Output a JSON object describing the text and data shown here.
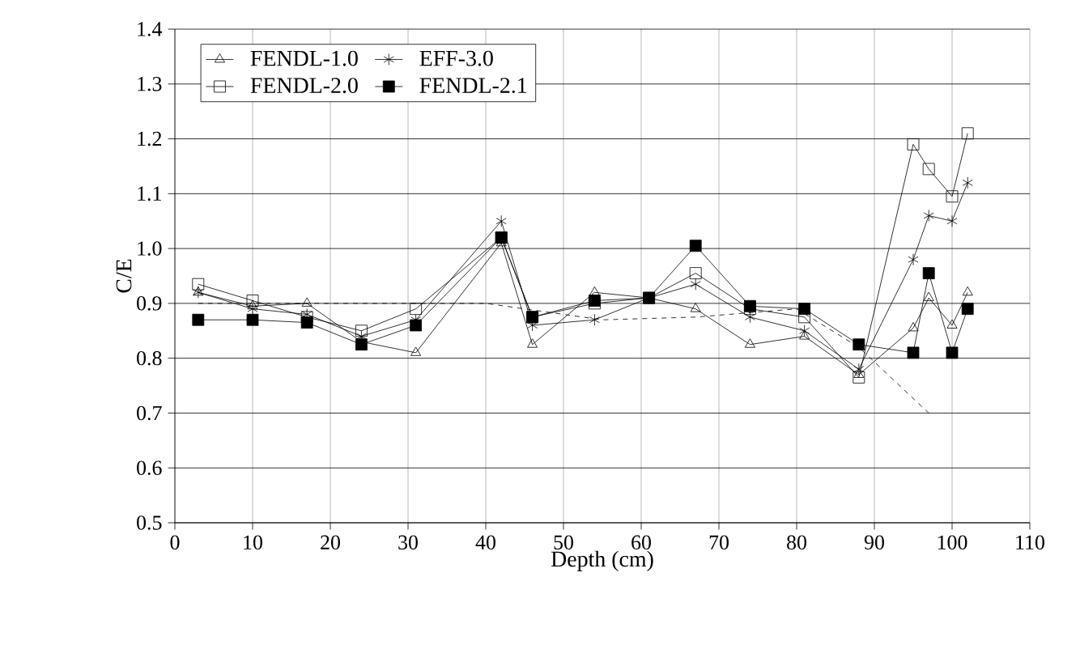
{
  "chart_data": {
    "type": "line",
    "xlabel": "Depth (cm)",
    "ylabel": "C/E",
    "xlim": [
      0,
      110
    ],
    "xticks": [
      0,
      10,
      20,
      30,
      40,
      50,
      60,
      70,
      80,
      90,
      100,
      110
    ],
    "ylim": [
      0.5,
      1.4
    ],
    "yticks": [
      0.5,
      0.6,
      0.7,
      0.8,
      0.9,
      {
        "value": 1,
        "label": "1.0"
      },
      1.1,
      1.2,
      1.3,
      1.4
    ],
    "grid": true,
    "legend": "top left",
    "x": [
      3,
      10,
      17,
      24,
      31,
      42,
      46,
      54,
      61,
      67,
      74,
      81,
      88,
      95,
      97,
      100,
      102
    ],
    "series": [
      {
        "name": "FENDL-1.0",
        "color": "#000000",
        "marker": "triangle",
        "values": [
          0.92,
          0.895,
          0.9,
          0.83,
          0.81,
          1.01,
          0.825,
          0.92,
          0.91,
          0.89,
          0.825,
          0.84,
          0.77,
          0.855,
          0.91,
          0.86,
          0.92
        ]
      },
      {
        "name": "EFF-3.0",
        "color": "#000000",
        "marker": "cross",
        "values": [
          0.92,
          0.89,
          0.88,
          0.84,
          0.87,
          1.05,
          0.86,
          0.87,
          0.91,
          0.935,
          0.875,
          0.85,
          0.78,
          0.98,
          1.06,
          1.05,
          1.12
        ]
      },
      {
        "name": "FENDL-2.0",
        "color": "#000000",
        "marker": "square",
        "values": [
          0.935,
          0.905,
          0.875,
          0.85,
          0.89,
          1.02,
          0.875,
          0.9,
          0.91,
          0.955,
          0.89,
          0.875,
          0.765,
          1.19,
          1.145,
          1.095,
          1.21
        ]
      },
      {
        "name": "FENDL-2.1",
        "color": "#000000",
        "marker": "square",
        "values": [
          0.87,
          0.87,
          0.865,
          0.825,
          0.86,
          1.02,
          0.875,
          0.905,
          0.91,
          1.005,
          0.895,
          0.89,
          0.825,
          0.81,
          0.955,
          0.81,
          0.89
        ]
      },
      {
        "color": "#000000",
        "marker": "none",
        "line_style": "dashed",
        "x": [
          3,
          20,
          40,
          55,
          67,
          80,
          88,
          97
        ],
        "values": [
          0.9,
          0.9,
          0.9,
          0.87,
          0.875,
          0.89,
          0.82,
          0.7
        ]
      }
    ]
  }
}
